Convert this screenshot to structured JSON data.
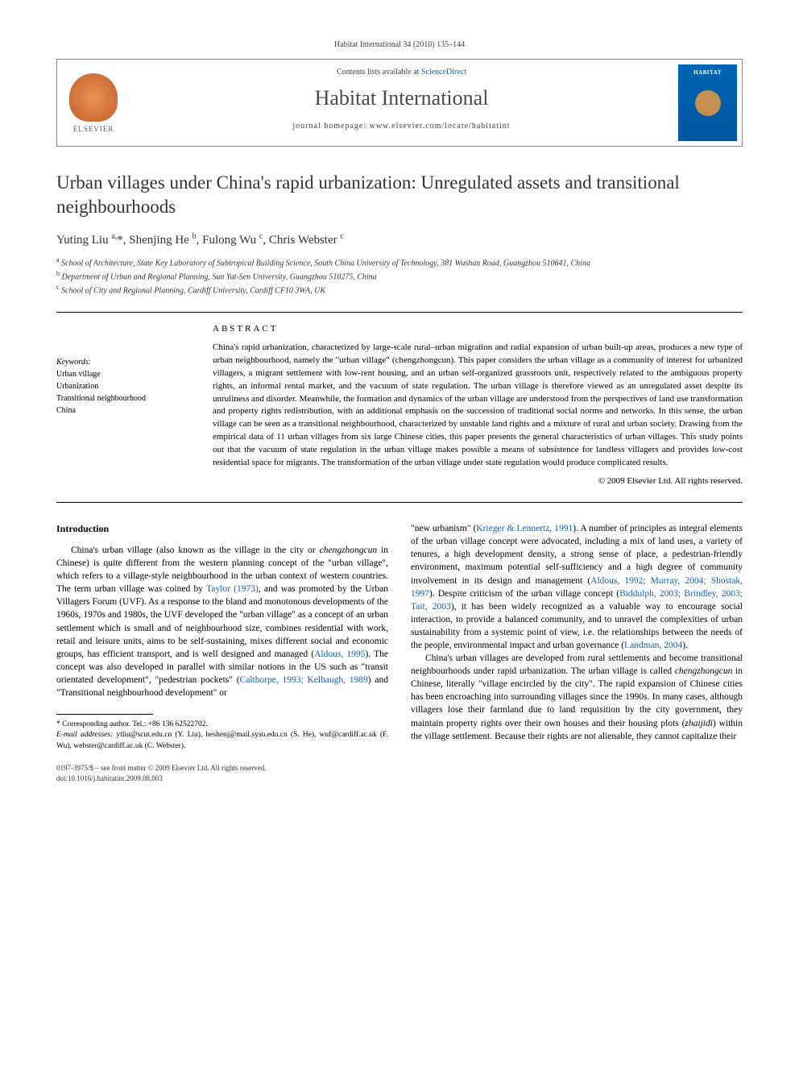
{
  "journal_ref": "Habitat International 34 (2010) 135–144",
  "header": {
    "contents_prefix": "Contents lists available at ",
    "contents_link": "ScienceDirect",
    "journal_name": "Habitat International",
    "homepage_prefix": "journal homepage: ",
    "homepage_url": "www.elsevier.com/locate/habitatint",
    "elsevier_label": "ELSEVIER",
    "cover_title": "HABITAT"
  },
  "title": "Urban villages under China's rapid urbanization: Unregulated assets and transitional neighbourhoods",
  "authors_html": "Yuting Liu <sup>a,</sup>*, Shenjing He <sup>b</sup>, Fulong Wu <sup>c</sup>, Chris Webster <sup>c</sup>",
  "affiliations": [
    {
      "sup": "a",
      "text": "School of Architecture, State Key Laboratory of Subtropical Building Science, South China University of Technology, 381 Wushan Road, Guangzhou 510641, China"
    },
    {
      "sup": "b",
      "text": "Department of Urban and Regional Planning, Sun Yat-Sen University, Guangzhou 510275, China"
    },
    {
      "sup": "c",
      "text": "School of City and Regional Planning, Cardiff University, Cardiff CF10 3WA, UK"
    }
  ],
  "keywords": {
    "heading": "Keywords:",
    "items": [
      "Urban village",
      "Urbanization",
      "Transitional neighbourhood",
      "China"
    ]
  },
  "abstract": {
    "heading": "ABSTRACT",
    "text": "China's rapid urbanization, characterized by large-scale rural–urban migration and radial expansion of urban built-up areas, produces a new type of urban neighbourhood, namely the \"urban village\" (chengzhongcun). This paper considers the urban village as a community of interest for urbanized villagers, a migrant settlement with low-rent housing, and an urban self-organized grassroots unit, respectively related to the ambiguous property rights, an informal rental market, and the vacuum of state regulation. The urban village is therefore viewed as an unregulated asset despite its unruliness and disorder. Meanwhile, the formation and dynamics of the urban village are understood from the perspectives of land use transformation and property rights redistribution, with an additional emphasis on the succession of traditional social norms and networks. In this sense, the urban village can be seen as a transitional neighbourhood, characterized by unstable land rights and a mixture of rural and urban society. Drawing from the empirical data of 11 urban villages from six large Chinese cities, this paper presents the general characteristics of urban villages. This study points out that the vacuum of state regulation in the urban village makes possible a means of subsistence for landless villagers and provides low-cost residential space for migrants. The transformation of the urban village under state regulation would produce complicated results.",
    "copyright": "© 2009 Elsevier Ltd. All rights reserved."
  },
  "body": {
    "intro_heading": "Introduction",
    "col1_p1_pre": "China's urban village (also known as the village in the city or ",
    "col1_p1_it1": "chengzhongcun",
    "col1_p1_mid1": " in Chinese) is quite different from the western planning concept of the \"urban village\", which refers to a village-style neighbourhood in the urban context of western countries. The term urban village was coined by ",
    "col1_p1_c1": "Taylor (1973)",
    "col1_p1_mid2": ", and was promoted by the Urban Villagers Forum (UVF). As a response to the bland and monotonous developments of the 1960s, 1970s and 1980s, the UVF developed the \"urban village\" as a concept of an urban settlement which is small and of neighbourhood size, combines residential with work, retail and leisure units, aims to be self-sustaining, mixes different social and economic groups, has efficient transport, and is well designed and managed (",
    "col1_p1_c2": "Aldous, 1995",
    "col1_p1_mid3": "). The concept was also developed in parallel with similar notions in the US such as \"transit orientated development\", \"pedestrian pockets\" (",
    "col1_p1_c3": "Calthorpe, 1993; Kelbaugh, 1989",
    "col1_p1_end": ") and \"Transitional neighbourhood development\" or",
    "col2_p1_pre": "\"new urbanism\" (",
    "col2_p1_c1": "Krieger & Lennertz, 1991",
    "col2_p1_mid1": "). A number of principles as integral elements of the urban village concept were advocated, including a mix of land uses, a variety of tenures, a high development density, a strong sense of place, a pedestrian-friendly environment, maximum potential self-sufficiency and a high degree of community involvement in its design and management (",
    "col2_p1_c2": "Aldous, 1992; Murray, 2004; Shostak, 1997",
    "col2_p1_mid2": "). Despite criticism of the urban village concept (",
    "col2_p1_c3": "Biddulph, 2003; Brindley, 2003; Tait, 2003",
    "col2_p1_mid3": "), it has been widely recognized as a valuable way to encourage social interaction, to provide a balanced community, and to unravel the complexities of urban sustainability from a systemic point of view, i.e. the relationships between the needs of the people, environmental impact and urban governance (",
    "col2_p1_c4": "Landman, 2004",
    "col2_p1_end": ").",
    "col2_p2_pre": "China's urban villages are developed from rural settlements and become transitional neighbourhoods under rapid urbanization. The urban village is called ",
    "col2_p2_it1": "chengzhongcun",
    "col2_p2_mid1": " in Chinese, literally \"village encircled by the city\". The rapid expansion of Chinese cities has been encroaching into surrounding villages since the 1990s. In many cases, although villagers lose their farmland due to land requisition by the city government, they maintain property rights over their own houses and their housing plots (",
    "col2_p2_it2": "zhaijidi",
    "col2_p2_end": ") within the village settlement. Because their rights are not alienable, they cannot capitalize their"
  },
  "footnotes": {
    "corr": "* Corresponding author. Tel.: +86 136 62522702.",
    "email_label": "E-mail addresses:",
    "emails": " ytliu@scut.edu.cn (Y. Liu), heshenj@mail.sysu.edu.cn (S. He), wuf@cardiff.ac.uk (F. Wu), webster@cardiff.ac.uk (C. Webster)."
  },
  "footer": {
    "line1": "0197-3975/$ – see front matter © 2009 Elsevier Ltd. All rights reserved.",
    "line2": "doi:10.1016/j.habitatint.2009.08.003"
  },
  "colors": {
    "link": "#1060c0",
    "cover_bg": "#0066b3",
    "elsevier_orange": "#d67840"
  }
}
